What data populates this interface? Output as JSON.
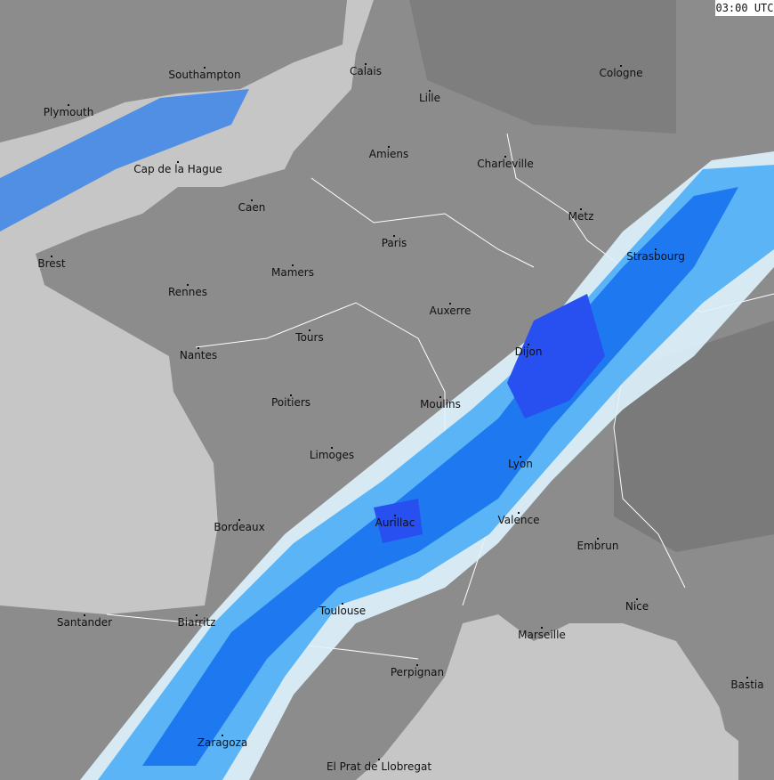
{
  "timestamp": "03:00 UTC",
  "colors": {
    "sea": "#c6c6c6",
    "land": "#8c8c8c",
    "land_dark": "#7a7a7a",
    "rain_light": "#dff4ff",
    "rain_medium": "#5ab4f5",
    "rain_heavy": "#1e78f0",
    "rain_intense": "#2850f0",
    "borders": "#ffffff"
  },
  "cities": [
    {
      "name": "Southampton"
    },
    {
      "name": "Plymouth"
    },
    {
      "name": "Cap de la Hague"
    },
    {
      "name": "Brest"
    },
    {
      "name": "Calais"
    },
    {
      "name": "Lille"
    },
    {
      "name": "Cologne"
    },
    {
      "name": "Amiens"
    },
    {
      "name": "Charleville"
    },
    {
      "name": "Caen"
    },
    {
      "name": "Metz"
    },
    {
      "name": "Paris"
    },
    {
      "name": "Strasbourg"
    },
    {
      "name": "Mamers"
    },
    {
      "name": "Rennes"
    },
    {
      "name": "Auxerre"
    },
    {
      "name": "Tours"
    },
    {
      "name": "Nantes"
    },
    {
      "name": "Dijon"
    },
    {
      "name": "Poitiers"
    },
    {
      "name": "Moulins"
    },
    {
      "name": "Limoges"
    },
    {
      "name": "Lyon"
    },
    {
      "name": "Aurillac"
    },
    {
      "name": "Valence"
    },
    {
      "name": "Bordeaux"
    },
    {
      "name": "Embrun"
    },
    {
      "name": "Toulouse"
    },
    {
      "name": "Nice"
    },
    {
      "name": "Santander"
    },
    {
      "name": "Biarritz"
    },
    {
      "name": "Marseille"
    },
    {
      "name": "Perpignan"
    },
    {
      "name": "Bastia"
    },
    {
      "name": "Zaragoza"
    },
    {
      "name": "El Prat de Llobregat"
    }
  ]
}
